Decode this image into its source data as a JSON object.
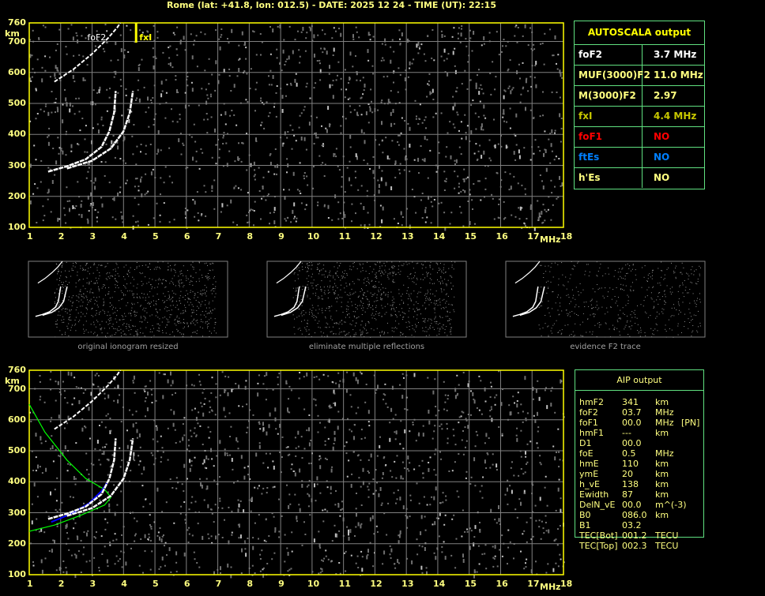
{
  "header": {
    "title": "Rome (lat: +41.8, lon: 012.5) - DATE: 2025 12 24 - TIME (UT): 22:15"
  },
  "ionogram": {
    "y_unit": "km",
    "x_unit": "MHz",
    "y_ticks": [
      "760",
      "700",
      "600",
      "500",
      "400",
      "300",
      "200",
      "100"
    ],
    "x_ticks": [
      "1",
      "2",
      "3",
      "4",
      "5",
      "6",
      "7",
      "8",
      "9",
      "10",
      "11",
      "12",
      "13",
      "14",
      "15",
      "16",
      "17",
      "18"
    ],
    "labels": {
      "foF2": "foF2",
      "fxI": "fxI"
    },
    "foF2_mhz": 3.7,
    "fxI_mhz": 4.4,
    "colors": {
      "axis": "#ffff00",
      "grid": "#808080",
      "trace": "#ffffff",
      "model": "#00ff00",
      "fit": "#0000ff"
    }
  },
  "autoscala": {
    "title": "AUTOSCALA output",
    "rows": [
      {
        "key": "foF2",
        "value": "3.7 MHz",
        "color": "#ffffff"
      },
      {
        "key": "MUF(3000)F2",
        "value": "11.0 MHz",
        "color": "#ffff80"
      },
      {
        "key": "M(3000)F2",
        "value": "2.97",
        "color": "#ffff80"
      },
      {
        "key": "fxI",
        "value": "4.4 MHz",
        "color": "#c8c800"
      },
      {
        "key": "foF1",
        "value": "NO",
        "color": "#ff0000"
      },
      {
        "key": "ftEs",
        "value": "NO",
        "color": "#0080ff"
      },
      {
        "key": "h'Es",
        "value": "NO",
        "color": "#ffff80"
      }
    ]
  },
  "thumbnails": [
    {
      "caption": "original ionogram resized"
    },
    {
      "caption": "eliminate multiple reflections"
    },
    {
      "caption": "evidence F2 trace"
    }
  ],
  "aip": {
    "title": "AIP output",
    "rows": [
      {
        "key": "hmF2",
        "value": "341",
        "unit": "km",
        "note": ""
      },
      {
        "key": "foF2",
        "value": "03.7",
        "unit": "MHz",
        "note": ""
      },
      {
        "key": "foF1",
        "value": "00.0",
        "unit": "MHz",
        "note": "[PN]"
      },
      {
        "key": "hmF1",
        "value": "---",
        "unit": "km",
        "note": ""
      },
      {
        "key": "D1",
        "value": "00.0",
        "unit": "",
        "note": ""
      },
      {
        "key": "foE",
        "value": "0.5",
        "unit": "MHz",
        "note": ""
      },
      {
        "key": "hmE",
        "value": "110",
        "unit": "km",
        "note": ""
      },
      {
        "key": "ymE",
        "value": "20",
        "unit": "km",
        "note": ""
      },
      {
        "key": "h_vE",
        "value": "138",
        "unit": "km",
        "note": ""
      },
      {
        "key": "Ewidth",
        "value": "87",
        "unit": "km",
        "note": ""
      },
      {
        "key": "DelN_vE",
        "value": "00.0",
        "unit": "m^(-3)",
        "note": ""
      },
      {
        "key": "B0",
        "value": "086.0",
        "unit": "km",
        "note": ""
      },
      {
        "key": "B1",
        "value": "03.2",
        "unit": "",
        "note": ""
      },
      {
        "key": "TEC[Bot]",
        "value": "001.2",
        "unit": "TECU",
        "note": ""
      },
      {
        "key": "TEC[Top]",
        "value": "002.3",
        "unit": "TECU",
        "note": ""
      }
    ]
  }
}
